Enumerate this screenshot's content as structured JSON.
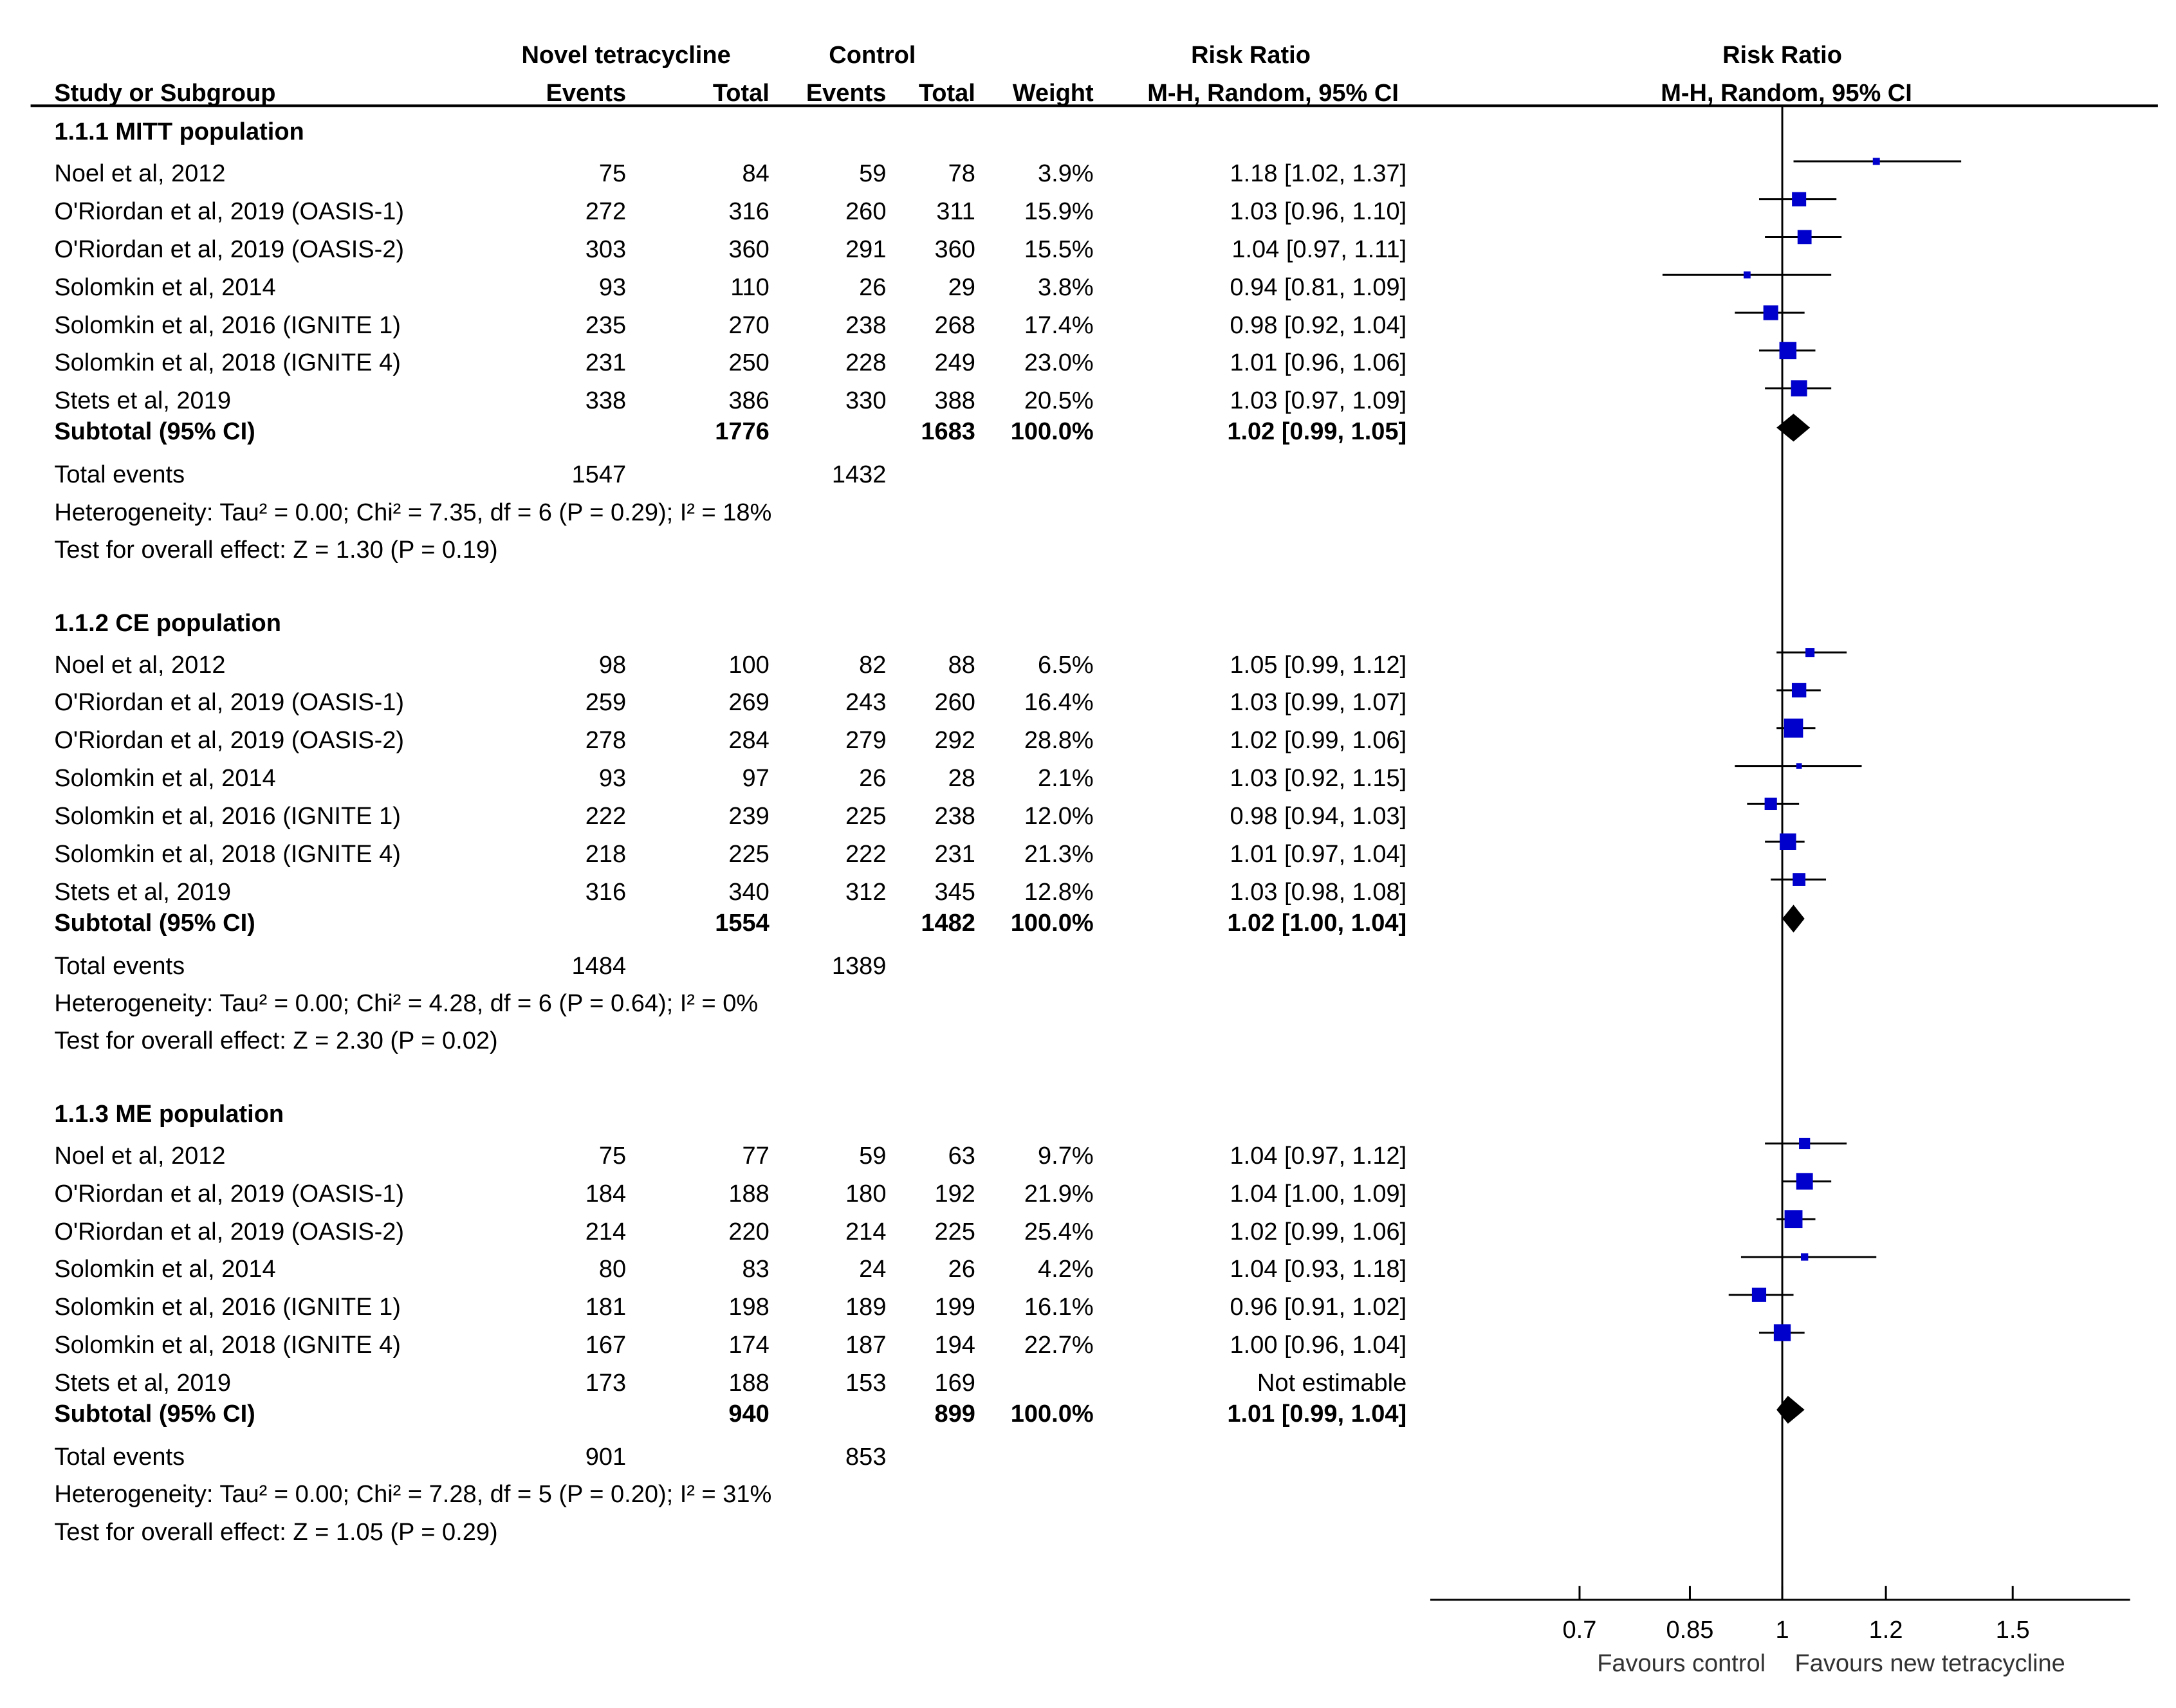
{
  "chart_data": {
    "type": "forest",
    "headers": {
      "group1": "Novel tetracycline",
      "group2": "Control",
      "rr_table": "Risk Ratio",
      "rr_plot": "Risk Ratio",
      "study": "Study or Subgroup",
      "events1": "Events",
      "total1": "Total",
      "events2": "Events",
      "total2": "Total",
      "weight": "Weight",
      "method_table": "M-H, Random, 95% CI",
      "method_plot": "M-H, Random, 95% CI"
    },
    "subgroups": [
      {
        "title": "1.1.1 MITT population",
        "studies": [
          {
            "name": "Noel et al, 2012",
            "e1": "75",
            "t1": "84",
            "e2": "59",
            "t2": "78",
            "weight": "3.9%",
            "ci_text": "1.18 [1.02, 1.37]",
            "rr": 1.18,
            "lo": 1.02,
            "hi": 1.37
          },
          {
            "name": "O'Riordan et al, 2019 (OASIS-1)",
            "e1": "272",
            "t1": "316",
            "e2": "260",
            "t2": "311",
            "weight": "15.9%",
            "ci_text": "1.03 [0.96, 1.10]",
            "rr": 1.03,
            "lo": 0.96,
            "hi": 1.1
          },
          {
            "name": "O'Riordan et al, 2019 (OASIS-2)",
            "e1": "303",
            "t1": "360",
            "e2": "291",
            "t2": "360",
            "weight": "15.5%",
            "ci_text": "1.04 [0.97, 1.11]",
            "rr": 1.04,
            "lo": 0.97,
            "hi": 1.11
          },
          {
            "name": "Solomkin et al, 2014",
            "e1": "93",
            "t1": "110",
            "e2": "26",
            "t2": "29",
            "weight": "3.8%",
            "ci_text": "0.94 [0.81, 1.09]",
            "rr": 0.94,
            "lo": 0.81,
            "hi": 1.09
          },
          {
            "name": "Solomkin et al, 2016 (IGNITE 1)",
            "e1": "235",
            "t1": "270",
            "e2": "238",
            "t2": "268",
            "weight": "17.4%",
            "ci_text": "0.98 [0.92, 1.04]",
            "rr": 0.98,
            "lo": 0.92,
            "hi": 1.04
          },
          {
            "name": "Solomkin et al, 2018 (IGNITE 4)",
            "e1": "231",
            "t1": "250",
            "e2": "228",
            "t2": "249",
            "weight": "23.0%",
            "ci_text": "1.01 [0.96, 1.06]",
            "rr": 1.01,
            "lo": 0.96,
            "hi": 1.06
          },
          {
            "name": "Stets et al, 2019",
            "e1": "338",
            "t1": "386",
            "e2": "330",
            "t2": "388",
            "weight": "20.5%",
            "ci_text": "1.03 [0.97, 1.09]",
            "rr": 1.03,
            "lo": 0.97,
            "hi": 1.09
          }
        ],
        "subtotal": {
          "label": "Subtotal (95% CI)",
          "t1": "1776",
          "t2": "1683",
          "weight": "100.0%",
          "ci_text": "1.02 [0.99, 1.05]",
          "rr": 1.02,
          "lo": 0.99,
          "hi": 1.05
        },
        "total_events": {
          "label": "Total events",
          "e1": "1547",
          "e2": "1432"
        },
        "heterogeneity": "Heterogeneity: Tau² = 0.00; Chi² = 7.35, df = 6 (P = 0.29); I² = 18%",
        "overall": "Test for overall effect: Z = 1.30 (P = 0.19)"
      },
      {
        "title": "1.1.2 CE population",
        "studies": [
          {
            "name": "Noel et al, 2012",
            "e1": "98",
            "t1": "100",
            "e2": "82",
            "t2": "88",
            "weight": "6.5%",
            "ci_text": "1.05 [0.99, 1.12]",
            "rr": 1.05,
            "lo": 0.99,
            "hi": 1.12
          },
          {
            "name": "O'Riordan et al, 2019 (OASIS-1)",
            "e1": "259",
            "t1": "269",
            "e2": "243",
            "t2": "260",
            "weight": "16.4%",
            "ci_text": "1.03 [0.99, 1.07]",
            "rr": 1.03,
            "lo": 0.99,
            "hi": 1.07
          },
          {
            "name": "O'Riordan et al, 2019 (OASIS-2)",
            "e1": "278",
            "t1": "284",
            "e2": "279",
            "t2": "292",
            "weight": "28.8%",
            "ci_text": "1.02 [0.99, 1.06]",
            "rr": 1.02,
            "lo": 0.99,
            "hi": 1.06
          },
          {
            "name": "Solomkin et al, 2014",
            "e1": "93",
            "t1": "97",
            "e2": "26",
            "t2": "28",
            "weight": "2.1%",
            "ci_text": "1.03 [0.92, 1.15]",
            "rr": 1.03,
            "lo": 0.92,
            "hi": 1.15
          },
          {
            "name": "Solomkin et al, 2016 (IGNITE 1)",
            "e1": "222",
            "t1": "239",
            "e2": "225",
            "t2": "238",
            "weight": "12.0%",
            "ci_text": "0.98 [0.94, 1.03]",
            "rr": 0.98,
            "lo": 0.94,
            "hi": 1.03
          },
          {
            "name": "Solomkin et al, 2018 (IGNITE 4)",
            "e1": "218",
            "t1": "225",
            "e2": "222",
            "t2": "231",
            "weight": "21.3%",
            "ci_text": "1.01 [0.97, 1.04]",
            "rr": 1.01,
            "lo": 0.97,
            "hi": 1.04
          },
          {
            "name": "Stets et al, 2019",
            "e1": "316",
            "t1": "340",
            "e2": "312",
            "t2": "345",
            "weight": "12.8%",
            "ci_text": "1.03 [0.98, 1.08]",
            "rr": 1.03,
            "lo": 0.98,
            "hi": 1.08
          }
        ],
        "subtotal": {
          "label": "Subtotal (95% CI)",
          "t1": "1554",
          "t2": "1482",
          "weight": "100.0%",
          "ci_text": "1.02 [1.00, 1.04]",
          "rr": 1.02,
          "lo": 1.0,
          "hi": 1.04
        },
        "total_events": {
          "label": "Total events",
          "e1": "1484",
          "e2": "1389"
        },
        "heterogeneity": "Heterogeneity: Tau² = 0.00; Chi² = 4.28, df = 6 (P = 0.64); I² = 0%",
        "overall": "Test for overall effect: Z = 2.30 (P = 0.02)"
      },
      {
        "title": "1.1.3 ME population",
        "studies": [
          {
            "name": "Noel et al, 2012",
            "e1": "75",
            "t1": "77",
            "e2": "59",
            "t2": "63",
            "weight": "9.7%",
            "ci_text": "1.04 [0.97, 1.12]",
            "rr": 1.04,
            "lo": 0.97,
            "hi": 1.12
          },
          {
            "name": "O'Riordan et al, 2019 (OASIS-1)",
            "e1": "184",
            "t1": "188",
            "e2": "180",
            "t2": "192",
            "weight": "21.9%",
            "ci_text": "1.04 [1.00, 1.09]",
            "rr": 1.04,
            "lo": 1.0,
            "hi": 1.09
          },
          {
            "name": "O'Riordan et al, 2019 (OASIS-2)",
            "e1": "214",
            "t1": "220",
            "e2": "214",
            "t2": "225",
            "weight": "25.4%",
            "ci_text": "1.02 [0.99, 1.06]",
            "rr": 1.02,
            "lo": 0.99,
            "hi": 1.06
          },
          {
            "name": "Solomkin et al, 2014",
            "e1": "80",
            "t1": "83",
            "e2": "24",
            "t2": "26",
            "weight": "4.2%",
            "ci_text": "1.04 [0.93, 1.18]",
            "rr": 1.04,
            "lo": 0.93,
            "hi": 1.18
          },
          {
            "name": "Solomkin et al, 2016 (IGNITE 1)",
            "e1": "181",
            "t1": "198",
            "e2": "189",
            "t2": "199",
            "weight": "16.1%",
            "ci_text": "0.96 [0.91, 1.02]",
            "rr": 0.96,
            "lo": 0.91,
            "hi": 1.02
          },
          {
            "name": "Solomkin et al, 2018 (IGNITE 4)",
            "e1": "167",
            "t1": "174",
            "e2": "187",
            "t2": "194",
            "weight": "22.7%",
            "ci_text": "1.00 [0.96, 1.04]",
            "rr": 1.0,
            "lo": 0.96,
            "hi": 1.04
          },
          {
            "name": "Stets et al, 2019",
            "e1": "173",
            "t1": "188",
            "e2": "153",
            "t2": "169",
            "weight": "",
            "ci_text": "Not estimable",
            "rr": null,
            "lo": null,
            "hi": null
          }
        ],
        "subtotal": {
          "label": "Subtotal (95% CI)",
          "t1": "940",
          "t2": "899",
          "weight": "100.0%",
          "ci_text": "1.01 [0.99, 1.04]",
          "rr": 1.01,
          "lo": 0.99,
          "hi": 1.04
        },
        "total_events": {
          "label": "Total events",
          "e1": "901",
          "e2": "853"
        },
        "heterogeneity": "Heterogeneity: Tau² = 0.00; Chi² = 7.28, df = 5 (P = 0.20); I² = 31%",
        "overall": "Test for overall effect: Z = 1.05 (P = 0.29)"
      }
    ],
    "x_axis": {
      "scale": "log",
      "ticks": [
        0.7,
        0.85,
        1,
        1.2,
        1.5
      ],
      "tick_labels": [
        "0.7",
        "0.85",
        "1",
        "1.2",
        "1.5"
      ],
      "xlim": [
        0.65,
        1.55
      ],
      "reference_line": 1
    },
    "favours_left": "Favours control",
    "favours_right": "Favours new tetracycline",
    "colors": {
      "study_marker": "#0000cc",
      "summary_diamond": "#000000",
      "lines": "#000000"
    }
  }
}
